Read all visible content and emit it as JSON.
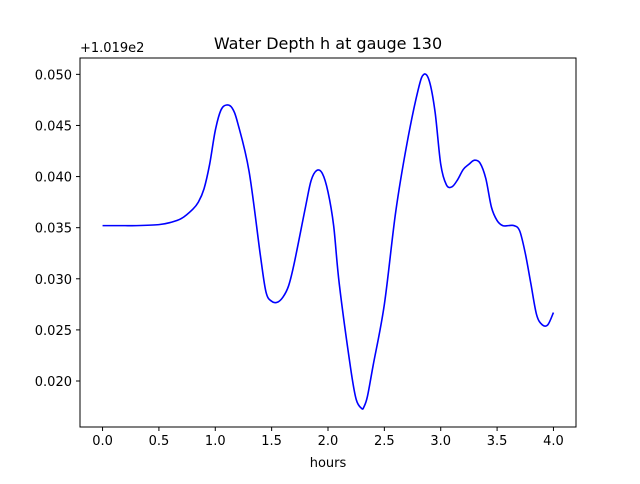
{
  "chart_data": {
    "type": "line",
    "title": "Water Depth h at gauge 130",
    "xlabel": "hours",
    "ylabel": "",
    "offset_label": "+1.019e2",
    "xlim": [
      -0.2,
      4.2
    ],
    "ylim": [
      0.0155,
      0.0516
    ],
    "x_ticks": [
      0.0,
      0.5,
      1.0,
      1.5,
      2.0,
      2.5,
      3.0,
      3.5,
      4.0
    ],
    "x_tick_labels": [
      "0.0",
      "0.5",
      "1.0",
      "1.5",
      "2.0",
      "2.5",
      "3.0",
      "3.5",
      "4.0"
    ],
    "y_ticks": [
      0.02,
      0.025,
      0.03,
      0.035,
      0.04,
      0.045,
      0.05
    ],
    "y_tick_labels": [
      "0.020",
      "0.025",
      "0.030",
      "0.035",
      "0.040",
      "0.045",
      "0.050"
    ],
    "grid": false,
    "series": [
      {
        "color": "#0000ff",
        "x": [
          0.0,
          0.2,
          0.3,
          0.5,
          0.6,
          0.7,
          0.8,
          0.85,
          0.9,
          0.95,
          1.0,
          1.05,
          1.1,
          1.15,
          1.2,
          1.3,
          1.4,
          1.45,
          1.5,
          1.55,
          1.6,
          1.65,
          1.7,
          1.8,
          1.85,
          1.9,
          1.95,
          2.0,
          2.05,
          2.1,
          2.2,
          2.25,
          2.3,
          2.32,
          2.35,
          2.4,
          2.5,
          2.6,
          2.7,
          2.8,
          2.85,
          2.9,
          2.95,
          3.0,
          3.05,
          3.1,
          3.15,
          3.2,
          3.25,
          3.3,
          3.35,
          3.4,
          3.45,
          3.5,
          3.55,
          3.6,
          3.65,
          3.7,
          3.75,
          3.8,
          3.85,
          3.9,
          3.95,
          4.0
        ],
        "y": [
          0.0352,
          0.0352,
          0.0352,
          0.0353,
          0.0355,
          0.0359,
          0.0368,
          0.0375,
          0.0388,
          0.0412,
          0.0445,
          0.0465,
          0.047,
          0.0467,
          0.0452,
          0.0405,
          0.0323,
          0.0287,
          0.0278,
          0.0277,
          0.0282,
          0.0293,
          0.0315,
          0.037,
          0.0396,
          0.0406,
          0.0403,
          0.0385,
          0.0352,
          0.0295,
          0.0213,
          0.0182,
          0.0173,
          0.0175,
          0.0185,
          0.0215,
          0.0275,
          0.0365,
          0.0432,
          0.0485,
          0.05,
          0.0493,
          0.0463,
          0.0412,
          0.0392,
          0.039,
          0.0397,
          0.0407,
          0.0412,
          0.0416,
          0.0413,
          0.0398,
          0.037,
          0.0357,
          0.0352,
          0.0352,
          0.0352,
          0.0347,
          0.0325,
          0.0295,
          0.0265,
          0.0255,
          0.0255,
          0.0267
        ]
      }
    ]
  }
}
